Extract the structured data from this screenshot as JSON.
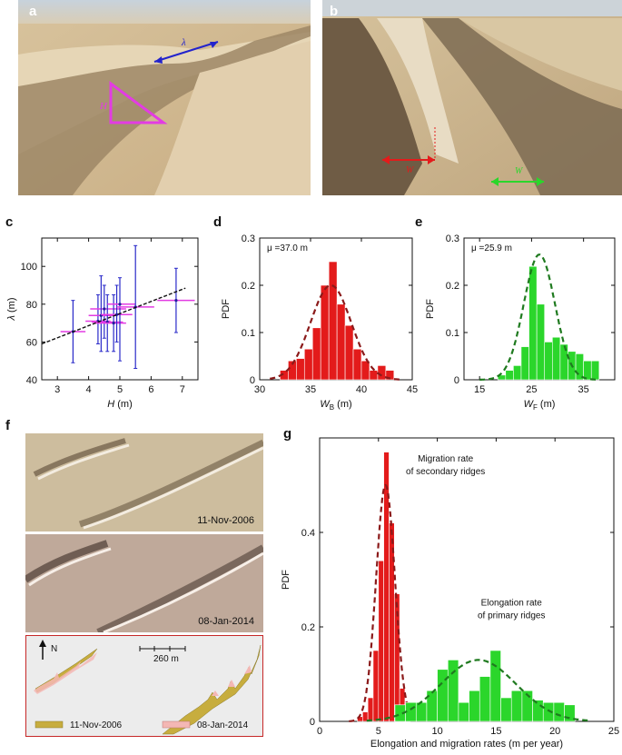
{
  "panels": {
    "a": {
      "label": "a",
      "lambda_symbol": "λ",
      "h_symbol": "H"
    },
    "b": {
      "label": "b",
      "wb_symbol": "W",
      "wf_symbol": "W"
    },
    "c": {
      "label": "c"
    },
    "d": {
      "label": "d"
    },
    "e": {
      "label": "e"
    },
    "f": {
      "label": "f",
      "date_top": "11-Nov-2006",
      "date_bottom": "08-Jan-2014",
      "north": "N",
      "scale": "260 m",
      "legend": [
        {
          "label": "11-Nov-2006",
          "color": "#c7ad3e"
        },
        {
          "label": "08-Jan-2014",
          "color": "#f4b7b4"
        }
      ]
    },
    "g": {
      "label": "g"
    }
  },
  "chart_data": [
    {
      "id": "c",
      "type": "scatter",
      "xlabel": "H (m)",
      "ylabel": "λ (m)",
      "xlim": [
        2.5,
        7.5
      ],
      "ylim": [
        40,
        115
      ],
      "xticks": [
        3,
        4,
        5,
        6,
        7
      ],
      "yticks": [
        40,
        60,
        80,
        100
      ],
      "points": [
        {
          "x": 3.5,
          "y": 65.5,
          "ylo": 49,
          "yhi": 82,
          "xlo": 3.1,
          "xhi": 3.9
        },
        {
          "x": 4.3,
          "y": 71,
          "ylo": 59,
          "yhi": 85,
          "xlo": 3.9,
          "xhi": 4.7
        },
        {
          "x": 4.5,
          "y": 77.5,
          "ylo": 62,
          "yhi": 90,
          "xlo": 4.05,
          "xhi": 5.2
        },
        {
          "x": 4.4,
          "y": 74,
          "ylo": 55,
          "yhi": 95,
          "xlo": 4.0,
          "xhi": 4.9
        },
        {
          "x": 4.6,
          "y": 70.5,
          "ylo": 55,
          "yhi": 85,
          "xlo": 4.1,
          "xhi": 5.1
        },
        {
          "x": 4.8,
          "y": 70,
          "ylo": 55,
          "yhi": 85,
          "xlo": 4.2,
          "xhi": 5.2
        },
        {
          "x": 4.9,
          "y": 74.5,
          "ylo": 60,
          "yhi": 90,
          "xlo": 4.4,
          "xhi": 5.4
        },
        {
          "x": 5.0,
          "y": 80,
          "ylo": 50,
          "yhi": 94,
          "xlo": 4.6,
          "xhi": 5.5
        },
        {
          "x": 5.5,
          "y": 78.5,
          "ylo": 46,
          "yhi": 111,
          "xlo": 4.9,
          "xhi": 6.1
        },
        {
          "x": 6.8,
          "y": 82,
          "ylo": 65,
          "yhi": 99,
          "xlo": 6.2,
          "xhi": 7.4
        }
      ],
      "fit": {
        "x": [
          2.5,
          7.1
        ],
        "y": [
          59,
          88.5
        ]
      },
      "colors": {
        "point": "#1f1f9c",
        "xerr": "#e33be3",
        "yerr": "#2929c9",
        "fit": "#111111"
      }
    },
    {
      "id": "d",
      "type": "bar",
      "xlabel": "W_B (m)",
      "ylabel": "PDF",
      "xlim": [
        30,
        45
      ],
      "ylim": [
        0,
        0.3
      ],
      "xticks": [
        30,
        35,
        40,
        45
      ],
      "yticks": [
        0,
        0.1,
        0.2,
        0.3
      ],
      "annotation": "μ =37.0 m",
      "bin_width": 0.8,
      "bins": [
        32.0,
        32.8,
        33.6,
        34.4,
        35.2,
        36.0,
        36.8,
        37.6,
        38.4,
        39.2,
        40.0,
        40.8,
        41.6,
        42.4
      ],
      "values": [
        0.02,
        0.04,
        0.045,
        0.065,
        0.11,
        0.2,
        0.25,
        0.16,
        0.115,
        0.065,
        0.04,
        0.02,
        0.03,
        0.02
      ],
      "fit_curve": {
        "mu": 37.0,
        "sigma": 2.0,
        "peak": 0.2
      },
      "colors": {
        "bar": "#e31b1b",
        "curve": "#8b1a1a"
      }
    },
    {
      "id": "e",
      "type": "bar",
      "xlabel": "W_F (m)",
      "ylabel": "PDF",
      "xlim": [
        12,
        41
      ],
      "ylim": [
        0,
        0.3
      ],
      "xticks": [
        15,
        25,
        35
      ],
      "yticks": [
        0,
        0.1,
        0.2,
        0.3
      ],
      "annotation": "μ =25.9 m",
      "bin_width": 1.5,
      "bins": [
        18.5,
        20.0,
        21.5,
        23.0,
        24.5,
        26.0,
        27.5,
        29.0,
        30.5,
        32.0,
        33.5,
        35.0,
        36.5
      ],
      "values": [
        0.01,
        0.02,
        0.03,
        0.07,
        0.24,
        0.16,
        0.08,
        0.09,
        0.075,
        0.06,
        0.055,
        0.04,
        0.04
      ],
      "fit_curve": {
        "mu": 26.5,
        "sigma": 3.0,
        "peak": 0.265
      },
      "colors": {
        "bar": "#2bd62b",
        "curve": "#1f7a1f"
      }
    },
    {
      "id": "g",
      "type": "bar",
      "xlabel": "Elongation and migration rates (m per year)",
      "ylabel": "PDF",
      "xlim": [
        0,
        25
      ],
      "ylim": [
        0,
        0.6
      ],
      "xticks": [
        0,
        5,
        10,
        15,
        20,
        25
      ],
      "yticks": [
        0,
        0.2,
        0.4
      ],
      "series": [
        {
          "name": "Migration rate of secondary ridges",
          "name_lines": [
            "Migration rate",
            "of secondary ridges"
          ],
          "bin_width": 0.45,
          "bins": [
            3.2,
            3.65,
            4.1,
            4.55,
            5.0,
            5.45,
            5.9,
            6.35,
            6.8,
            7.25
          ],
          "values": [
            0.01,
            0.02,
            0.05,
            0.15,
            0.34,
            0.57,
            0.42,
            0.27,
            0.07,
            0.04
          ],
          "fit_curve": {
            "mu": 5.6,
            "sigma": 0.8,
            "peak": 0.5
          },
          "color": "#e31b1b",
          "curve": "#8b1a1a"
        },
        {
          "name": "Elongation rate of primary ridges",
          "name_lines": [
            "Elongation rate",
            "of primary ridges"
          ],
          "bin_width": 0.9,
          "bins": [
            6.4,
            7.3,
            8.2,
            9.1,
            10.0,
            10.9,
            11.8,
            12.7,
            13.6,
            14.5,
            15.4,
            16.3,
            17.2,
            18.1,
            19.0,
            19.9,
            20.8
          ],
          "values": [
            0.035,
            0.04,
            0.04,
            0.065,
            0.11,
            0.13,
            0.04,
            0.065,
            0.095,
            0.15,
            0.05,
            0.065,
            0.065,
            0.045,
            0.04,
            0.04,
            0.035
          ],
          "fit_curve": {
            "mu": 13.5,
            "sigma": 3.2,
            "peak": 0.13
          },
          "color": "#2bd62b",
          "curve": "#1f7a1f"
        }
      ]
    }
  ]
}
